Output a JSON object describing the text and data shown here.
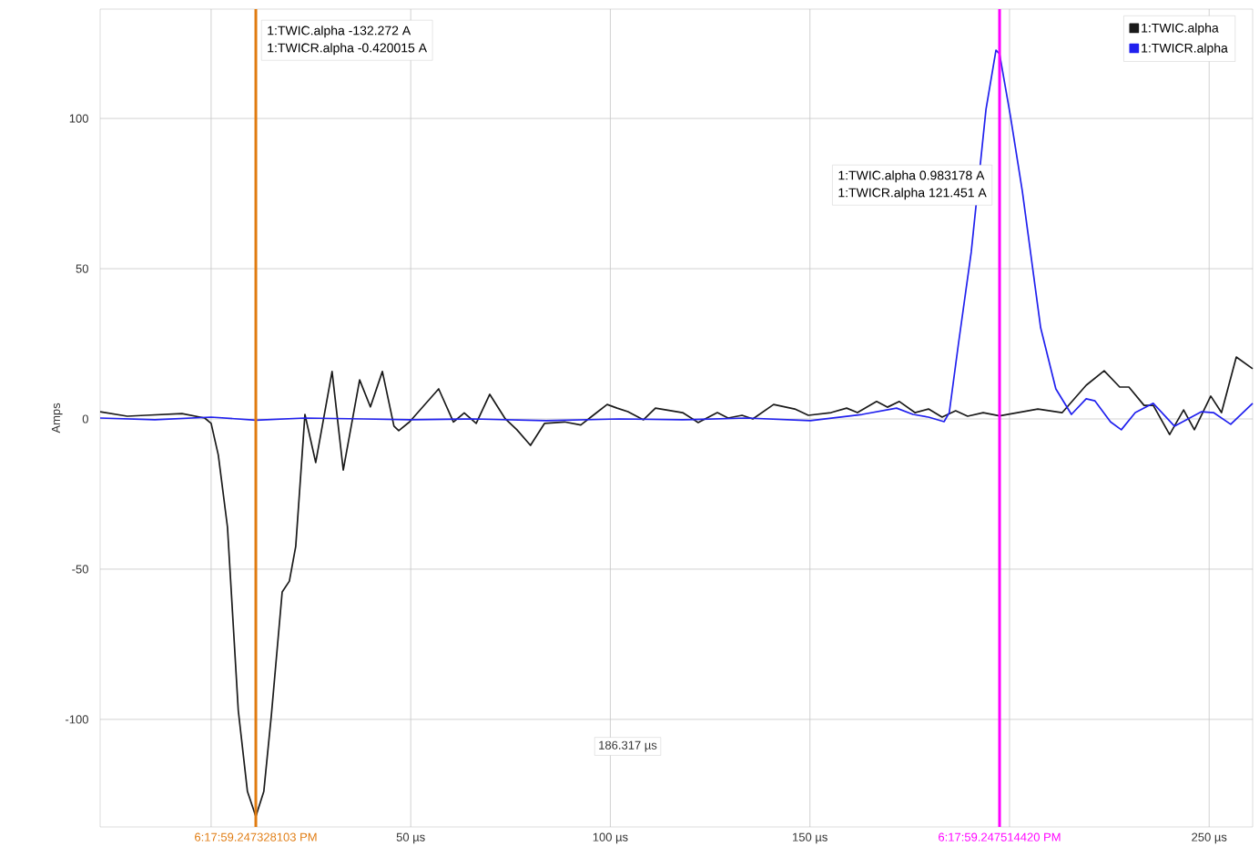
{
  "chart_data": {
    "type": "line",
    "ylabel": "Amps",
    "xlim": [
      -27.8,
      260.9
    ],
    "ylim": [
      -135.8,
      136.4
    ],
    "xticks": [
      {
        "value": 0,
        "label": null
      },
      {
        "value": 11.2,
        "label": "6:17:59.247328103 PM"
      },
      {
        "value": 50,
        "label": "50 µs"
      },
      {
        "value": 100,
        "label": "100 µs"
      },
      {
        "value": 150,
        "label": "150 µs"
      },
      {
        "value": 197.5,
        "label": "6:17:59.247514420 PM"
      },
      {
        "value": 200,
        "label": null
      },
      {
        "value": 250,
        "label": "250 µs"
      }
    ],
    "yticks": [
      -100,
      -50,
      0,
      50,
      100
    ],
    "grid": true,
    "legend": "top right",
    "line_style": "solid",
    "series": [
      {
        "name": "1:TWIC.alpha",
        "color": "#1a1a1a",
        "x": [
          -27.8,
          -21.0,
          -16.4,
          -7.3,
          -1.6,
          0,
          1.8,
          4.1,
          6.8,
          9.1,
          11.2,
          13.2,
          15.1,
          17.8,
          19.6,
          21.2,
          23.5,
          26.2,
          30.3,
          33.1,
          37.2,
          39.9,
          42.9,
          45.8,
          47.0,
          49.7,
          57.0,
          60.7,
          63.4,
          66.4,
          69.8,
          73.7,
          76.6,
          80.0,
          83.5,
          88.5,
          92.6,
          96.0,
          99.2,
          101.7,
          104.4,
          108.3,
          111.3,
          118.1,
          122.0,
          126.8,
          129.5,
          133.0,
          135.7,
          140.9,
          146.2,
          149.6,
          155.3,
          159.2,
          161.9,
          166.7,
          169.4,
          172.4,
          176.3,
          179.7,
          183.1,
          186.5,
          189.5,
          193.4,
          197.5,
          207.1,
          213.2,
          219.2,
          223.7,
          227.6,
          229.9,
          233.7,
          236.0,
          240.1,
          243.6,
          246.3,
          250.4,
          253.1,
          256.8,
          260.9
        ],
        "values": [
          2.4,
          0.9,
          1.2,
          1.8,
          0.3,
          -1.5,
          -12,
          -36,
          -97,
          -124,
          -132.3,
          -124,
          -98.5,
          -57.6,
          -54,
          -42.4,
          1.5,
          -14.5,
          15.8,
          -17,
          13,
          4,
          15.8,
          -2.4,
          -3.9,
          -1,
          10,
          -1,
          2,
          -1.5,
          8.2,
          0,
          -3.6,
          -8.8,
          -1.5,
          -1,
          -2,
          1.5,
          4.8,
          3.6,
          2.4,
          -0.3,
          3.6,
          2.1,
          -1.2,
          2.1,
          0.3,
          1.2,
          0,
          4.8,
          3.3,
          1.2,
          2.1,
          3.6,
          2.1,
          5.8,
          3.9,
          5.8,
          2.1,
          3.3,
          0.6,
          2.7,
          0.9,
          2.1,
          1,
          3.3,
          2.1,
          11.2,
          16,
          10.6,
          10.6,
          4.5,
          4.5,
          -5.2,
          3,
          -3.6,
          7.6,
          2.1,
          20.6,
          16.7
        ]
      },
      {
        "name": "1:TWICR.alpha",
        "color": "#2020ee",
        "x": [
          -27.8,
          -14.1,
          0,
          11.2,
          23.5,
          38.3,
          49.7,
          65.7,
          83.9,
          102.2,
          118.1,
          134.1,
          150.1,
          163.1,
          171.7,
          175.8,
          179.7,
          183.6,
          184.9,
          187.2,
          190.4,
          194.1,
          196.6,
          197.5,
          200.2,
          203.2,
          207.8,
          211.6,
          215.5,
          219.2,
          221.4,
          225.3,
          228.0,
          231.5,
          236.0,
          241.3,
          248.1,
          251.1,
          255.4,
          260.9
        ],
        "values": [
          0.3,
          -0.3,
          0.6,
          -0.4,
          0.3,
          0,
          -0.3,
          0,
          -0.6,
          0,
          -0.3,
          0.3,
          -0.6,
          1.5,
          3.6,
          1.5,
          0.6,
          -0.9,
          2.1,
          25,
          55.5,
          103,
          122.7,
          121.5,
          101,
          75.8,
          30.3,
          10,
          1.5,
          6.7,
          6,
          -1,
          -3.6,
          2.1,
          5.2,
          -2.4,
          2.4,
          2.1,
          -1.8,
          5.2
        ]
      }
    ],
    "ref_lines": [
      {
        "axis": "x",
        "value": 11.2,
        "color": "#e07b10"
      },
      {
        "axis": "x",
        "value": 197.5,
        "color": "#ff00ff"
      }
    ],
    "annotations": [
      "1:TWIC.alpha  -132.272 A",
      "1:TWICR.alpha  -0.420015 A",
      "1:TWIC.alpha  0.983178 A",
      "1:TWICR.alpha  121.451 A",
      "186.317 µs"
    ]
  }
}
